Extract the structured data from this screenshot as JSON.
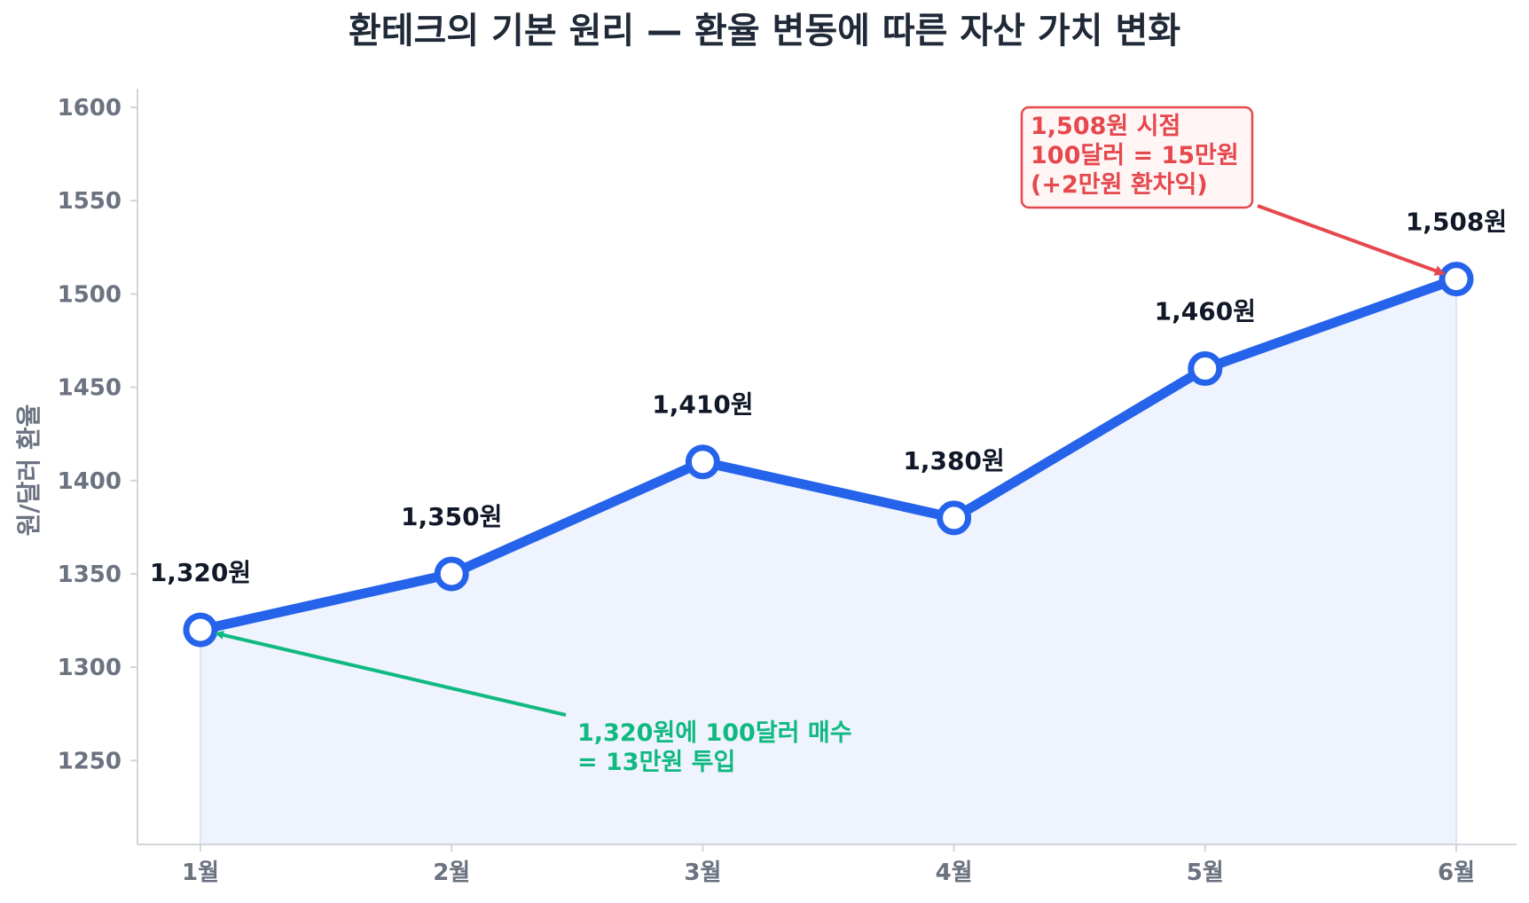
{
  "chart_data": {
    "type": "line",
    "title": "환테크의 기본 원리 — 환율 변동에 따른 자산 가치 변화",
    "xlabel": "",
    "ylabel": "원/달러 환율",
    "categories": [
      "1월",
      "2월",
      "3월",
      "4월",
      "5월",
      "6월"
    ],
    "values": [
      1320,
      1350,
      1410,
      1380,
      1460,
      1508
    ],
    "data_labels": [
      "1,320원",
      "1,350원",
      "1,410원",
      "1,380원",
      "1,460원",
      "1,508원"
    ],
    "ylim": [
      1205,
      1610
    ],
    "yticks": [
      1250,
      1300,
      1350,
      1400,
      1450,
      1500,
      1550,
      1600
    ],
    "grid": false,
    "area_fill": true,
    "colors": {
      "line": "#2563eb",
      "area": "#eef3fd",
      "marker_fill": "#ffffff",
      "axis": "#d1d5db",
      "buy_annotation": "#10b981",
      "sell_annotation": "#e5484d",
      "sell_box_fill": "#fff5f5"
    },
    "annotations": [
      {
        "id": "buy",
        "category": "1월",
        "value": 1320,
        "lines": [
          "1,320원에 100달러 매수",
          "= 13만원 투입"
        ]
      },
      {
        "id": "sell",
        "category": "6월",
        "value": 1508,
        "lines": [
          "1,508원 시점",
          "100달러 = 15만원",
          "(+2만원 환차익)"
        ]
      }
    ]
  }
}
